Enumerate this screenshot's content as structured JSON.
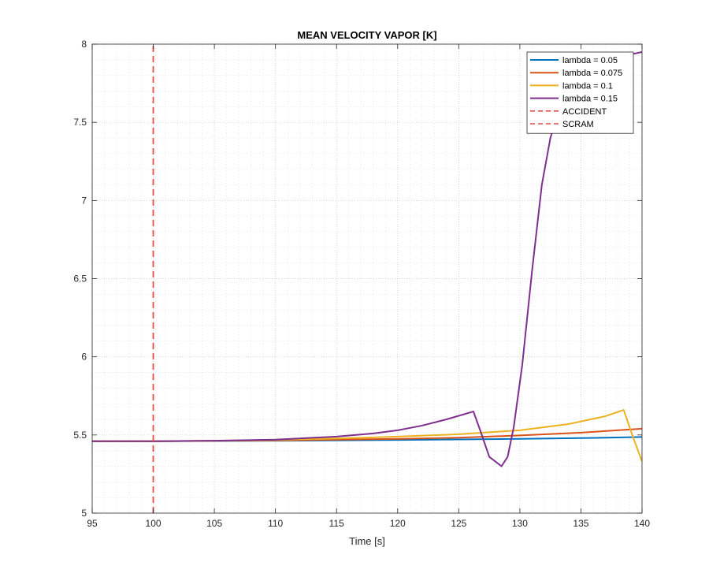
{
  "chart_data": {
    "type": "line",
    "title": "MEAN VELOCITY VAPOR [K]",
    "xlabel": "Time [s]",
    "ylabel": "",
    "xlim": [
      95,
      140
    ],
    "ylim": [
      5,
      8
    ],
    "xticks": [
      95,
      100,
      105,
      110,
      115,
      120,
      125,
      130,
      135,
      140
    ],
    "yticks": [
      5,
      5.5,
      6,
      6.5,
      7,
      7.5,
      8
    ],
    "grid": "major and minor, dotted",
    "legend_position": "top-right",
    "series": [
      {
        "name": "lambda = 0.05",
        "color": "#0072BD",
        "style": "solid",
        "points": [
          [
            95,
            5.46
          ],
          [
            100,
            5.46
          ],
          [
            110,
            5.463
          ],
          [
            120,
            5.468
          ],
          [
            130,
            5.475
          ],
          [
            135,
            5.48
          ],
          [
            140,
            5.487
          ]
        ]
      },
      {
        "name": "lambda = 0.075",
        "color": "#D95319",
        "style": "solid",
        "points": [
          [
            95,
            5.46
          ],
          [
            100,
            5.46
          ],
          [
            110,
            5.465
          ],
          [
            120,
            5.475
          ],
          [
            125,
            5.483
          ],
          [
            130,
            5.497
          ],
          [
            135,
            5.515
          ],
          [
            140,
            5.54
          ]
        ]
      },
      {
        "name": "lambda = 0.1",
        "color": "#EDB120",
        "style": "solid",
        "points": [
          [
            95,
            5.46
          ],
          [
            100,
            5.46
          ],
          [
            105,
            5.463
          ],
          [
            110,
            5.468
          ],
          [
            115,
            5.478
          ],
          [
            120,
            5.49
          ],
          [
            125,
            5.505
          ],
          [
            130,
            5.53
          ],
          [
            134,
            5.57
          ],
          [
            137,
            5.62
          ],
          [
            138.5,
            5.66
          ],
          [
            139.2,
            5.5
          ],
          [
            140,
            5.33
          ]
        ]
      },
      {
        "name": "lambda = 0.15",
        "color": "#7E2F8E",
        "style": "solid",
        "points": [
          [
            95,
            5.46
          ],
          [
            100,
            5.46
          ],
          [
            105,
            5.463
          ],
          [
            110,
            5.47
          ],
          [
            115,
            5.49
          ],
          [
            118,
            5.51
          ],
          [
            120,
            5.53
          ],
          [
            122,
            5.56
          ],
          [
            124,
            5.6
          ],
          [
            126.2,
            5.65
          ],
          [
            126.8,
            5.52
          ],
          [
            127.5,
            5.36
          ],
          [
            128.5,
            5.3
          ],
          [
            129,
            5.36
          ],
          [
            129.5,
            5.55
          ],
          [
            130.2,
            5.95
          ],
          [
            131,
            6.55
          ],
          [
            131.8,
            7.1
          ],
          [
            132.5,
            7.4
          ],
          [
            133.2,
            7.58
          ],
          [
            133.8,
            7.68
          ],
          [
            134.3,
            7.75
          ],
          [
            135,
            7.82
          ],
          [
            137,
            7.9
          ],
          [
            140,
            7.95
          ]
        ]
      },
      {
        "name": "ACCIDENT",
        "color": "#E74C4C",
        "style": "dashed",
        "points": [
          [
            100,
            5
          ],
          [
            100,
            8
          ]
        ]
      },
      {
        "name": "SCRAM",
        "color": "#E74C4C",
        "style": "dashed",
        "points": [
          [
            100,
            5
          ],
          [
            100,
            8
          ]
        ]
      }
    ]
  }
}
